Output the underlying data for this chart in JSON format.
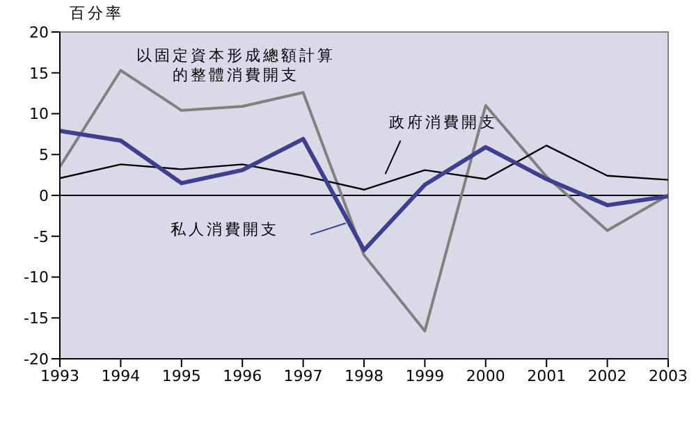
{
  "chart_data": {
    "type": "line",
    "ylabel": "百分率",
    "x": [
      1993,
      1994,
      1995,
      1996,
      1997,
      1998,
      1999,
      2000,
      2001,
      2002,
      2003
    ],
    "xlim": [
      1993,
      2003
    ],
    "xticks": [
      1993,
      1994,
      1995,
      1996,
      1997,
      1998,
      1999,
      2000,
      2001,
      2002,
      2003
    ],
    "ylim": [
      -20,
      20
    ],
    "yticks": [
      -20,
      -15,
      -10,
      -5,
      0,
      5,
      10,
      15,
      20
    ],
    "series": [
      {
        "name": "以固定資本形成總額計算的整體消費開支",
        "color": "#808080",
        "values": [
          3.5,
          15.3,
          10.4,
          10.9,
          12.6,
          -7.3,
          -16.6,
          11.0,
          2.3,
          -4.3,
          0
        ]
      },
      {
        "name": "政府消費開支",
        "color": "#000000",
        "values": [
          2.1,
          3.8,
          3.2,
          3.8,
          2.4,
          0.7,
          3.1,
          2.0,
          6.1,
          2.4,
          1.9
        ]
      },
      {
        "name": "私人消費開支",
        "color": "#3f3f8f",
        "values": [
          7.9,
          6.7,
          1.5,
          3.1,
          6.9,
          -6.7,
          1.3,
          5.9,
          2.0,
          -1.2,
          -0.1
        ]
      }
    ],
    "ref_lines": [
      {
        "axis": "y",
        "value": 0,
        "color": "#000000"
      }
    ],
    "marker": "none",
    "line_style": "solid"
  }
}
